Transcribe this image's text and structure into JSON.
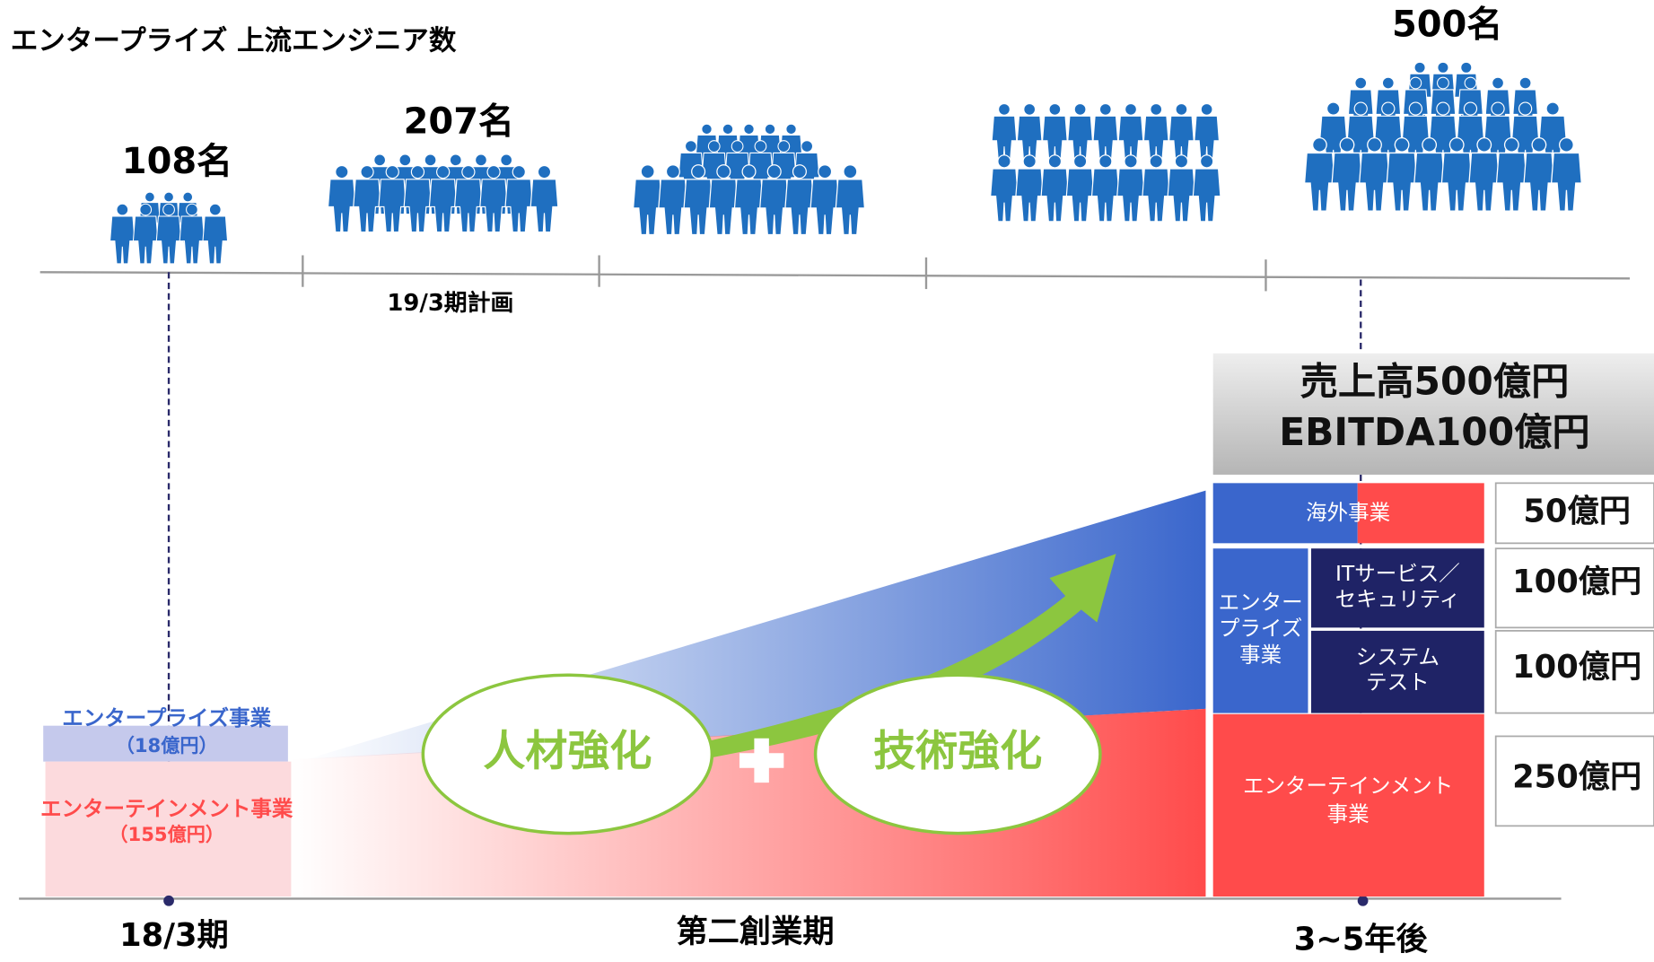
{
  "header": {
    "title": "エンタープライズ 上流エンジニア数"
  },
  "headcounts": [
    "108名",
    "207名",
    "500名"
  ],
  "timeline_label": "19/3期計画",
  "target": {
    "sales": "売上高500億円",
    "ebitda": "EBITDA100億円"
  },
  "segments": {
    "overseas": "海外事業",
    "enterprise": [
      "エンター",
      "プライズ",
      "事業"
    ],
    "it": [
      "ITサービス／",
      "セキュリティ"
    ],
    "system": [
      "システム",
      "テスト"
    ],
    "entertainment": [
      "エンターテインメント",
      "事業"
    ]
  },
  "amounts": [
    "50億円",
    "100億円",
    "100億円",
    "250億円"
  ],
  "current": {
    "enterprise": "エンタープライズ事業",
    "enterprise_amount": "（18億円）",
    "entertainment": "エンターテインメント事業",
    "entertainment_amount": "（155億円）"
  },
  "strategies": [
    "人材強化",
    "技術強化"
  ],
  "periods": [
    "18/3期",
    "第二創業期",
    "3~5年後"
  ]
}
